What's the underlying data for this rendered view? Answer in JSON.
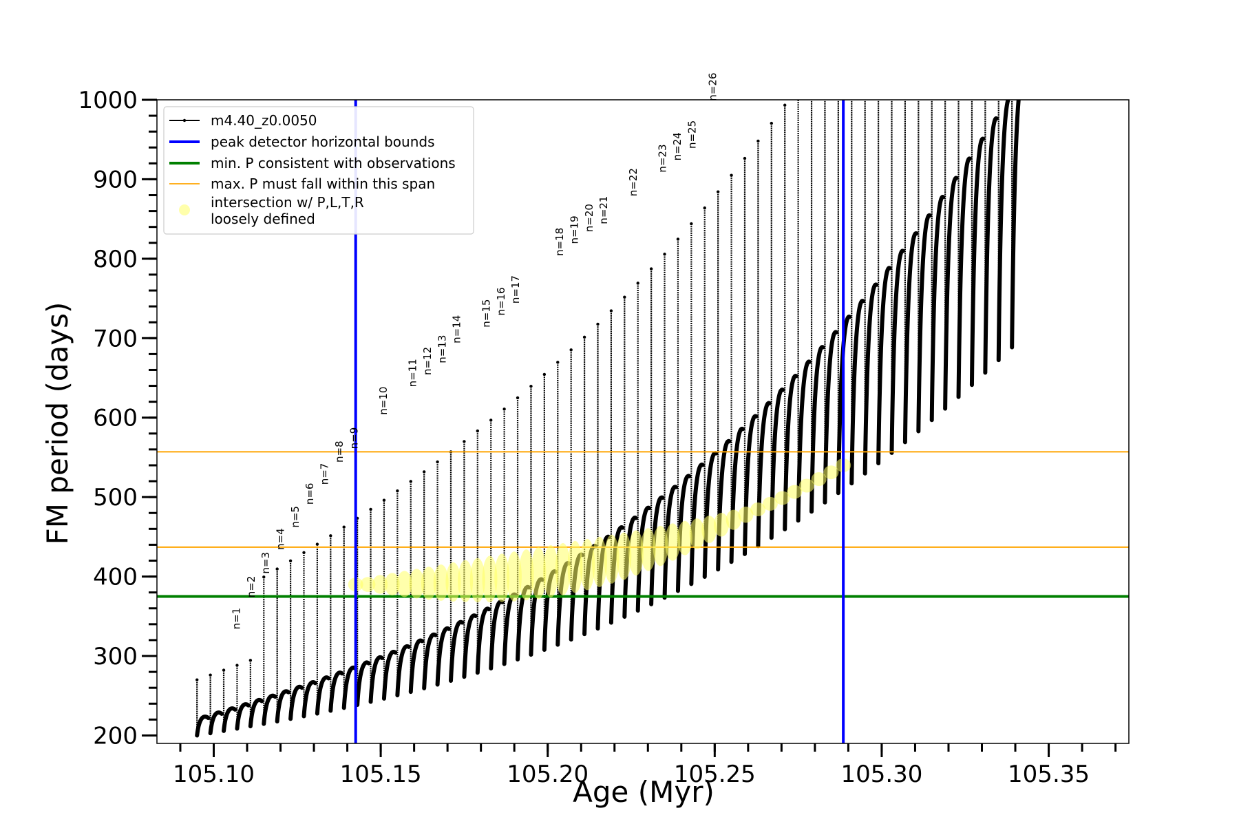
{
  "chart_data": {
    "type": "line",
    "xlabel": "Age (Myr)",
    "ylabel": "FM period (days)",
    "xlim": [
      105.083,
      105.374
    ],
    "ylim": [
      190,
      1000
    ],
    "x_ticks": [
      "105.10",
      "105.15",
      "105.20",
      "105.25",
      "105.30",
      "105.35"
    ],
    "x_tick_values": [
      105.1,
      105.15,
      105.2,
      105.25,
      105.3,
      105.35
    ],
    "y_ticks": [
      "200",
      "300",
      "400",
      "500",
      "600",
      "700",
      "800",
      "900",
      "1000"
    ],
    "y_tick_values": [
      200,
      300,
      400,
      500,
      600,
      700,
      800,
      900,
      1000
    ],
    "legend": {
      "position": "upper-left",
      "entries": [
        {
          "label": "m4.40_z0.0050",
          "color": "#000000",
          "kind": "line-marker"
        },
        {
          "label": "peak detector horizontal bounds",
          "color": "#0000ff",
          "kind": "line"
        },
        {
          "label": "min. P consistent with observations",
          "color": "#008000",
          "kind": "line"
        },
        {
          "label": "max. P must fall within this span",
          "color": "#ffa500",
          "kind": "thin-line"
        },
        {
          "label": "intersection w/ P,L,T,R\nloosely defined",
          "color": "#ffff66",
          "kind": "marker"
        }
      ]
    },
    "series": [
      {
        "name": "m4.40_z0.0050",
        "color": "#000000",
        "pulse_count": 62,
        "age_start": 105.095,
        "age_step": 0.004,
        "min_period_start": 200,
        "pulse_shape_note": "each pulse drops from its peak P to a minimum and rises again"
      }
    ],
    "vertical_lines": [
      {
        "x": 105.1425,
        "color": "#0000ff"
      },
      {
        "x": 105.2885,
        "color": "#0000ff"
      }
    ],
    "horizontal_lines": [
      {
        "y": 375,
        "color": "#008000"
      },
      {
        "y": 437,
        "color": "#ffa500"
      },
      {
        "y": 557,
        "color": "#ffa500"
      }
    ],
    "intersection_band": {
      "x_start": 105.1425,
      "x_end": 105.2885,
      "y_start": 390,
      "y_end": 540,
      "color": "#ffff66"
    },
    "pulse_labels": [
      {
        "text": "n=1",
        "x": 105.1068,
        "y": 330
      },
      {
        "text": "n=2",
        "x": 105.1112,
        "y": 370
      },
      {
        "text": "n=3",
        "x": 105.1156,
        "y": 400
      },
      {
        "text": "n=4",
        "x": 105.12,
        "y": 430
      },
      {
        "text": "n=5",
        "x": 105.1244,
        "y": 458
      },
      {
        "text": "n=6",
        "x": 105.1288,
        "y": 487
      },
      {
        "text": "n=7",
        "x": 105.1332,
        "y": 512
      },
      {
        "text": "n=8",
        "x": 105.1376,
        "y": 540
      },
      {
        "text": "n=9",
        "x": 105.142,
        "y": 557
      },
      {
        "text": "n=10",
        "x": 105.1508,
        "y": 600
      },
      {
        "text": "n=11",
        "x": 105.1596,
        "y": 635
      },
      {
        "text": "n=12",
        "x": 105.164,
        "y": 650
      },
      {
        "text": "n=13",
        "x": 105.1684,
        "y": 665
      },
      {
        "text": "n=14",
        "x": 105.1728,
        "y": 690
      },
      {
        "text": "n=15",
        "x": 105.1816,
        "y": 710
      },
      {
        "text": "n=16",
        "x": 105.186,
        "y": 725
      },
      {
        "text": "n=17",
        "x": 105.1904,
        "y": 740
      },
      {
        "text": "n=18",
        "x": 105.2036,
        "y": 800
      },
      {
        "text": "n=19",
        "x": 105.208,
        "y": 815
      },
      {
        "text": "n=20",
        "x": 105.2124,
        "y": 830
      },
      {
        "text": "n=21",
        "x": 105.2168,
        "y": 840
      },
      {
        "text": "n=22",
        "x": 105.2256,
        "y": 875
      },
      {
        "text": "n=23",
        "x": 105.2344,
        "y": 905
      },
      {
        "text": "n=24",
        "x": 105.2388,
        "y": 920
      },
      {
        "text": "n=25",
        "x": 105.2432,
        "y": 935
      },
      {
        "text": "n=26",
        "x": 105.2494,
        "y": 995
      }
    ]
  }
}
